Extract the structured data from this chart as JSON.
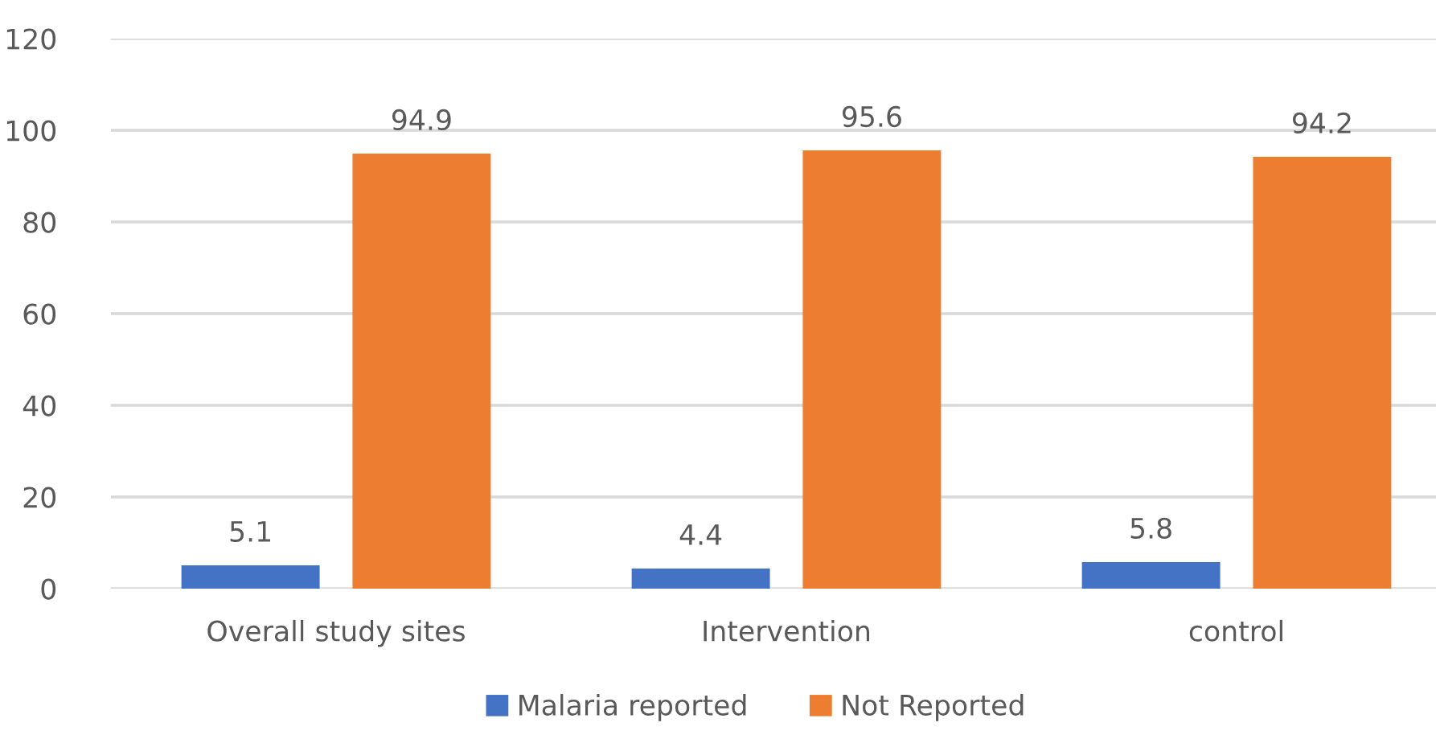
{
  "chart_data": {
    "type": "bar",
    "categories": [
      "Overall study sites",
      "Intervention",
      "control"
    ],
    "series": [
      {
        "name": "Malaria reported",
        "color": "#4472c4",
        "values": [
          5.1,
          4.4,
          5.8
        ]
      },
      {
        "name": "Not Reported",
        "color": "#ed7d31",
        "values": [
          94.9,
          95.6,
          94.2
        ]
      }
    ],
    "ylim": [
      0,
      120
    ],
    "yticks": [
      0,
      20,
      40,
      60,
      80,
      100,
      120
    ],
    "grid": "y",
    "legend": "bottom",
    "data_labels": true
  }
}
